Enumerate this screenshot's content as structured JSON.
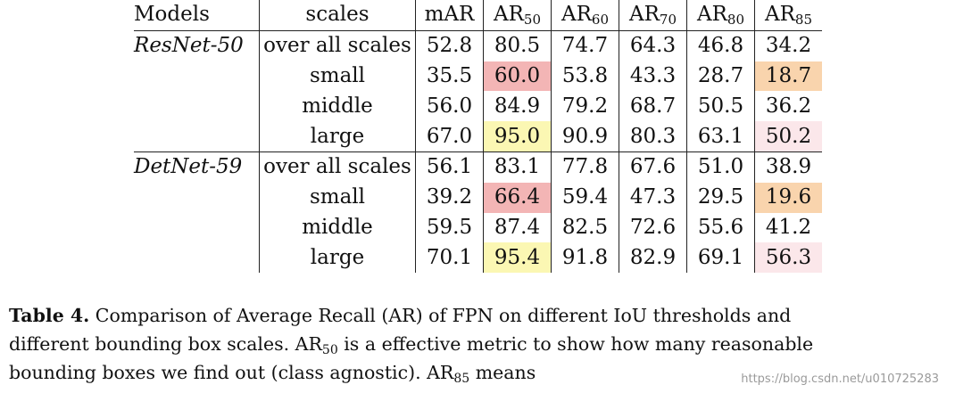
{
  "table": {
    "headers": {
      "models": "Models",
      "scales": "scales",
      "mar": "mAR",
      "ar_prefix": "AR",
      "thresholds": [
        "50",
        "60",
        "70",
        "80",
        "85"
      ]
    },
    "groups": [
      {
        "model": "ResNet-50",
        "rows": [
          {
            "scale": "over all scales",
            "values": [
              "52.8",
              "80.5",
              "74.7",
              "64.3",
              "46.8",
              "34.2"
            ]
          },
          {
            "scale": "small",
            "values": [
              "35.5",
              "60.0",
              "53.8",
              "43.3",
              "28.7",
              "18.7"
            ]
          },
          {
            "scale": "middle",
            "values": [
              "56.0",
              "84.9",
              "79.2",
              "68.7",
              "50.5",
              "36.2"
            ]
          },
          {
            "scale": "large",
            "values": [
              "67.0",
              "95.0",
              "90.9",
              "80.3",
              "63.1",
              "50.2"
            ]
          }
        ]
      },
      {
        "model": "DetNet-59",
        "rows": [
          {
            "scale": "over all scales",
            "values": [
              "56.1",
              "83.1",
              "77.8",
              "67.6",
              "51.0",
              "38.9"
            ]
          },
          {
            "scale": "small",
            "values": [
              "39.2",
              "66.4",
              "59.4",
              "47.3",
              "29.5",
              "19.6"
            ]
          },
          {
            "scale": "middle",
            "values": [
              "59.5",
              "87.4",
              "82.5",
              "72.6",
              "55.6",
              "41.2"
            ]
          },
          {
            "scale": "large",
            "values": [
              "70.1",
              "95.4",
              "91.8",
              "82.9",
              "69.1",
              "56.3"
            ]
          }
        ]
      }
    ],
    "highlight_colors": {
      "red": "#f3b5b5",
      "yellow": "#fbf7b3",
      "orange": "#f9d4ad",
      "pink": "#fbe7ea"
    }
  },
  "caption": {
    "label": "Table 4.",
    "line1": " Comparison of Average Recall (AR) of FPN on different IoU thresholds and",
    "line2_a": "different bounding box scales. AR",
    "line2_sub": "50",
    "line2_b": " is a effective metric to show how many reasonable",
    "line3_a": "bounding boxes we find out (class agnostic). AR",
    "line3_sub": "85",
    "line3_b": " means"
  },
  "watermark": "https://blog.csdn.net/u010725283"
}
